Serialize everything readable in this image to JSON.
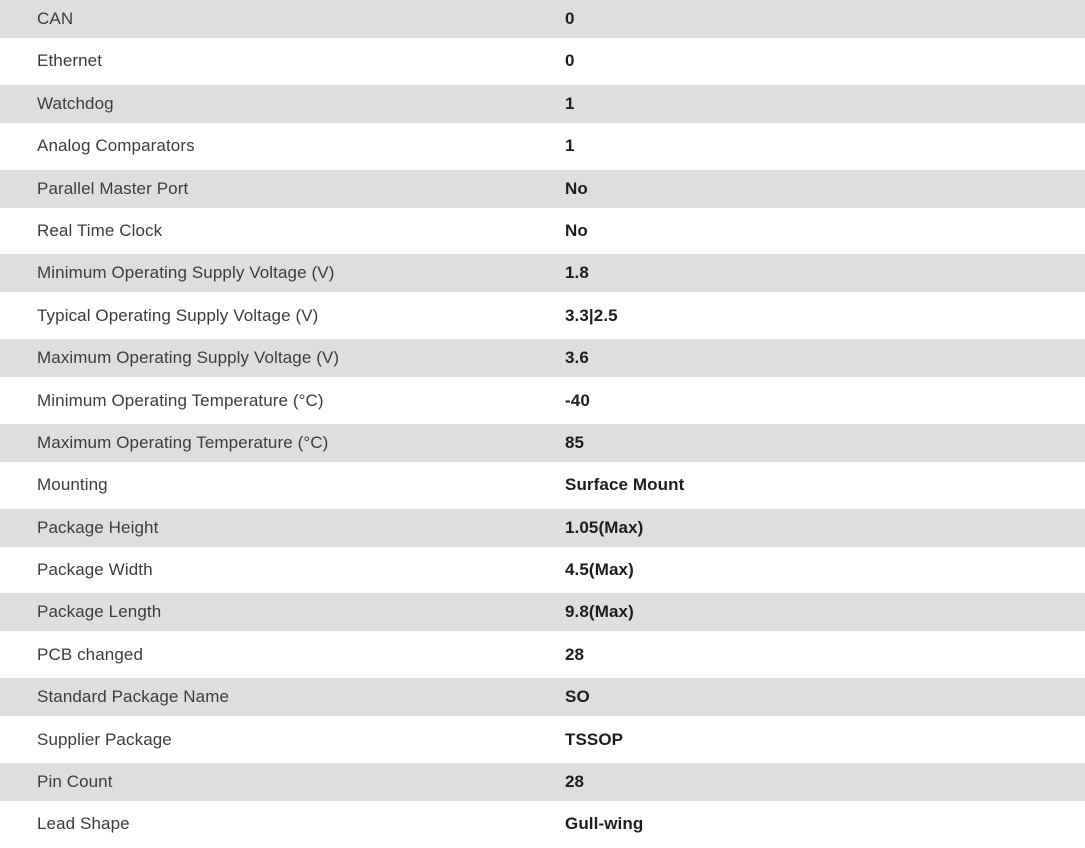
{
  "colors": {
    "row_stripe": "#dedede",
    "label_text": "#3c3c3c",
    "value_text": "#1d1d1d",
    "background": "#ffffff"
  },
  "table": {
    "columns": [
      "attribute",
      "value"
    ],
    "rows": [
      {
        "label": "CAN",
        "value": "0"
      },
      {
        "label": "Ethernet",
        "value": "0"
      },
      {
        "label": "Watchdog",
        "value": "1"
      },
      {
        "label": "Analog Comparators",
        "value": "1"
      },
      {
        "label": "Parallel Master Port",
        "value": "No"
      },
      {
        "label": "Real Time Clock",
        "value": "No"
      },
      {
        "label": "Minimum Operating Supply Voltage (V)",
        "value": "1.8"
      },
      {
        "label": "Typical Operating Supply Voltage (V)",
        "value": "3.3|2.5"
      },
      {
        "label": "Maximum Operating Supply Voltage (V)",
        "value": "3.6"
      },
      {
        "label": "Minimum Operating Temperature (°C)",
        "value": "-40"
      },
      {
        "label": "Maximum Operating Temperature (°C)",
        "value": "85"
      },
      {
        "label": "Mounting",
        "value": "Surface Mount"
      },
      {
        "label": "Package Height",
        "value": "1.05(Max)"
      },
      {
        "label": "Package Width",
        "value": "4.5(Max)"
      },
      {
        "label": "Package Length",
        "value": "9.8(Max)"
      },
      {
        "label": "PCB changed",
        "value": "28"
      },
      {
        "label": "Standard Package Name",
        "value": "SO"
      },
      {
        "label": "Supplier Package",
        "value": "TSSOP"
      },
      {
        "label": "Pin Count",
        "value": "28"
      },
      {
        "label": "Lead Shape",
        "value": "Gull-wing"
      }
    ]
  }
}
